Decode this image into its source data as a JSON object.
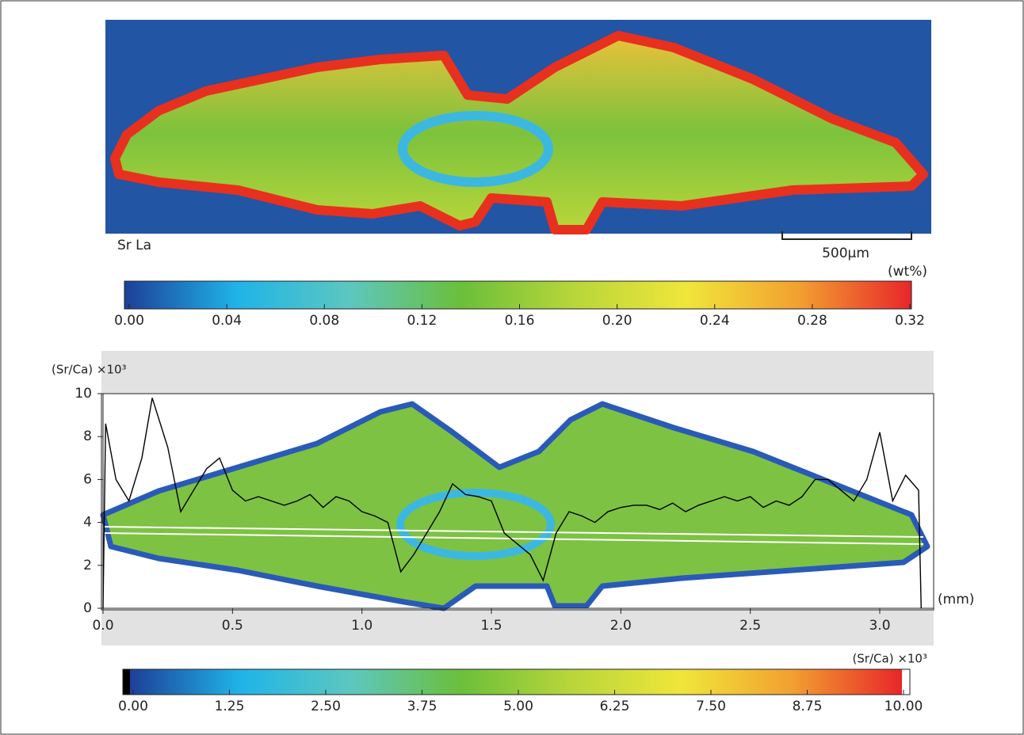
{
  "map": {
    "label": "Sr La",
    "scale_bar": "500µm"
  },
  "chart_data": [
    {
      "type": "colorbar",
      "title": "(wt%)",
      "colormap": [
        "#1d3f98",
        "#1fb4e8",
        "#5cc7c0",
        "#6bbf3a",
        "#b8d63a",
        "#f0e63a",
        "#f2a030",
        "#e8262a"
      ],
      "xlim": [
        0,
        0.32
      ],
      "xticks": [
        {
          "value": 0,
          "label": "0.00"
        },
        0.04,
        0.08,
        0.12,
        0.16,
        {
          "value": 0.2,
          "label": "0.20"
        },
        0.24,
        0.28,
        0.32
      ]
    },
    {
      "type": "line",
      "y_label": "(Sr/Ca) ×10³",
      "x_label": "(mm)",
      "color": "#000000",
      "x": [
        0,
        0.01,
        0.05,
        0.1,
        0.15,
        0.19,
        0.25,
        0.3,
        0.35,
        0.4,
        0.45,
        0.5,
        0.55,
        0.6,
        0.65,
        0.7,
        0.75,
        0.8,
        0.85,
        0.9,
        0.95,
        1.0,
        1.05,
        1.1,
        1.15,
        1.2,
        1.25,
        1.3,
        1.35,
        1.4,
        1.45,
        1.5,
        1.55,
        1.6,
        1.65,
        1.7,
        1.75,
        1.8,
        1.85,
        1.9,
        1.95,
        2.0,
        2.05,
        2.1,
        2.15,
        2.2,
        2.25,
        2.3,
        2.35,
        2.4,
        2.45,
        2.5,
        2.55,
        2.6,
        2.65,
        2.7,
        2.75,
        2.8,
        2.85,
        2.9,
        2.95,
        3.0,
        3.05,
        3.1,
        3.15,
        3.16
      ],
      "values": [
        0,
        8.6,
        6,
        5,
        7,
        9.8,
        7.5,
        4.5,
        5.5,
        6.5,
        7,
        5.5,
        5,
        5.2,
        5,
        4.8,
        5,
        5.3,
        4.7,
        5.2,
        5,
        4.5,
        4.3,
        4,
        1.7,
        2.5,
        3.5,
        4.5,
        5.8,
        5.3,
        5.2,
        5,
        3.5,
        3,
        2.5,
        1.3,
        3.5,
        4.5,
        4.3,
        4,
        4.5,
        4.7,
        4.8,
        4.8,
        4.6,
        4.9,
        4.5,
        4.8,
        5,
        5.2,
        5,
        5.2,
        4.7,
        5,
        4.8,
        5.2,
        6,
        6,
        5.5,
        5,
        6,
        8.2,
        5,
        6.2,
        5.5,
        0
      ],
      "xlim": [
        0,
        3.2
      ],
      "ylim": [
        0,
        10
      ],
      "xticks": [
        {
          "value": 0,
          "label": "0.0"
        },
        0.5,
        {
          "value": 1,
          "label": "1.0"
        },
        1.5,
        {
          "value": 2,
          "label": "2.0"
        },
        2.5,
        {
          "value": 3,
          "label": "3.0"
        }
      ],
      "yticks": [
        0,
        2,
        4,
        6,
        8,
        10
      ]
    },
    {
      "type": "colorbar",
      "title": "(Sr/Ca) ×10³",
      "colormap": [
        "#1d3f98",
        "#1fb4e8",
        "#5cc7c0",
        "#6bbf3a",
        "#b8d63a",
        "#f0e63a",
        "#f2a030",
        "#e8262a"
      ],
      "xlim": [
        0,
        10
      ],
      "xticks": [
        {
          "value": 0,
          "label": "0.00"
        },
        1.25,
        {
          "value": 2.5,
          "label": "2.50"
        },
        3.75,
        {
          "value": 5,
          "label": "5.00"
        },
        6.25,
        {
          "value": 7.5,
          "label": "7.50"
        },
        8.75,
        {
          "value": 10,
          "label": "10.00"
        }
      ]
    }
  ]
}
